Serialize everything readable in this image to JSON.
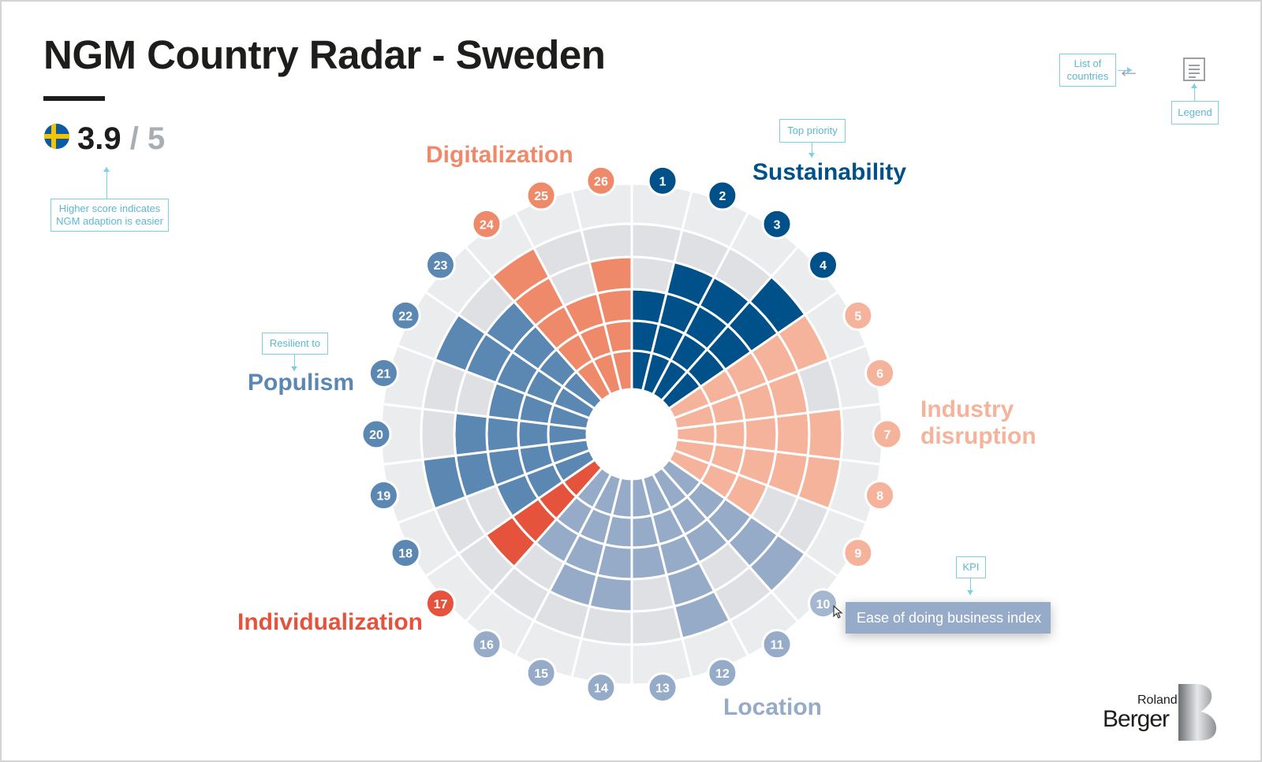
{
  "title": "NGM Country Radar - Sweden",
  "score": {
    "value": "3.9",
    "total": "/ 5"
  },
  "notes": {
    "score_hint": [
      "Higher score indicates",
      "NGM adaption is easier"
    ],
    "top_priority": "Top priority",
    "resilient": "Resilient to",
    "kpi": "KPI",
    "list_of_countries": [
      "List of",
      "countries"
    ],
    "legend": "Legend"
  },
  "tooltip": {
    "text": "Ease of doing business index"
  },
  "logo": {
    "top": "Roland",
    "bottom": "Berger"
  },
  "colors": {
    "sustainability": "#00508a",
    "industry_disruption": "#f4b39a",
    "location": "#96abc8",
    "individualization": "#e5533d",
    "populism": "#5b87b3",
    "digitalization": "#ee8a6a",
    "empty_cell": "#dfe0e3",
    "empty_outer": "#ebecee"
  },
  "chart_data": {
    "type": "radar",
    "scale_max": 5,
    "categories": [
      {
        "name": "Sustainability",
        "lines": [
          "Sustainability"
        ],
        "color": "#00508a",
        "kpis": [
          1,
          2,
          3,
          4
        ]
      },
      {
        "name": "Industry disruption",
        "lines": [
          "Industry",
          "disruption"
        ],
        "color": "#f4b39a",
        "kpis": [
          5,
          6,
          7,
          8,
          9
        ]
      },
      {
        "name": "Location",
        "lines": [
          "Location"
        ],
        "color": "#96abc8",
        "kpis": [
          10,
          11,
          12,
          13,
          14,
          15,
          16
        ]
      },
      {
        "name": "Individualization",
        "lines": [
          "Individualization"
        ],
        "color": "#e5533d",
        "kpis": [
          17
        ]
      },
      {
        "name": "Populism",
        "lines": [
          "Populism"
        ],
        "color": "#5b87b3",
        "kpis": [
          18,
          19,
          20,
          21,
          22,
          23
        ]
      },
      {
        "name": "Digitalization",
        "lines": [
          "Digitalization"
        ],
        "color": "#ee8a6a",
        "kpis": [
          24,
          25,
          26
        ]
      }
    ],
    "kpis": [
      {
        "id": "1",
        "value": 3
      },
      {
        "id": "2",
        "value": 4
      },
      {
        "id": "3",
        "value": 4
      },
      {
        "id": "4",
        "value": 5
      },
      {
        "id": "5",
        "value": 5
      },
      {
        "id": "6",
        "value": 4
      },
      {
        "id": "7",
        "value": 5
      },
      {
        "id": "8",
        "value": 5
      },
      {
        "id": "9",
        "value": 3
      },
      {
        "id": "10",
        "value": 5
      },
      {
        "id": "11",
        "value": 3
      },
      {
        "id": "12",
        "value": 5
      },
      {
        "id": "13",
        "value": 3
      },
      {
        "id": "14",
        "value": 4
      },
      {
        "id": "15",
        "value": 4
      },
      {
        "id": "16",
        "value": 3
      },
      {
        "id": "17",
        "value": 4
      },
      {
        "id": "18",
        "value": 3
      },
      {
        "id": "19",
        "value": 5
      },
      {
        "id": "20",
        "value": 4
      },
      {
        "id": "21",
        "value": 3
      },
      {
        "id": "22",
        "value": 5
      },
      {
        "id": "23",
        "value": 4
      },
      {
        "id": "24",
        "value": 5
      },
      {
        "id": "25",
        "value": 3
      },
      {
        "id": "26",
        "value": 4
      }
    ]
  }
}
